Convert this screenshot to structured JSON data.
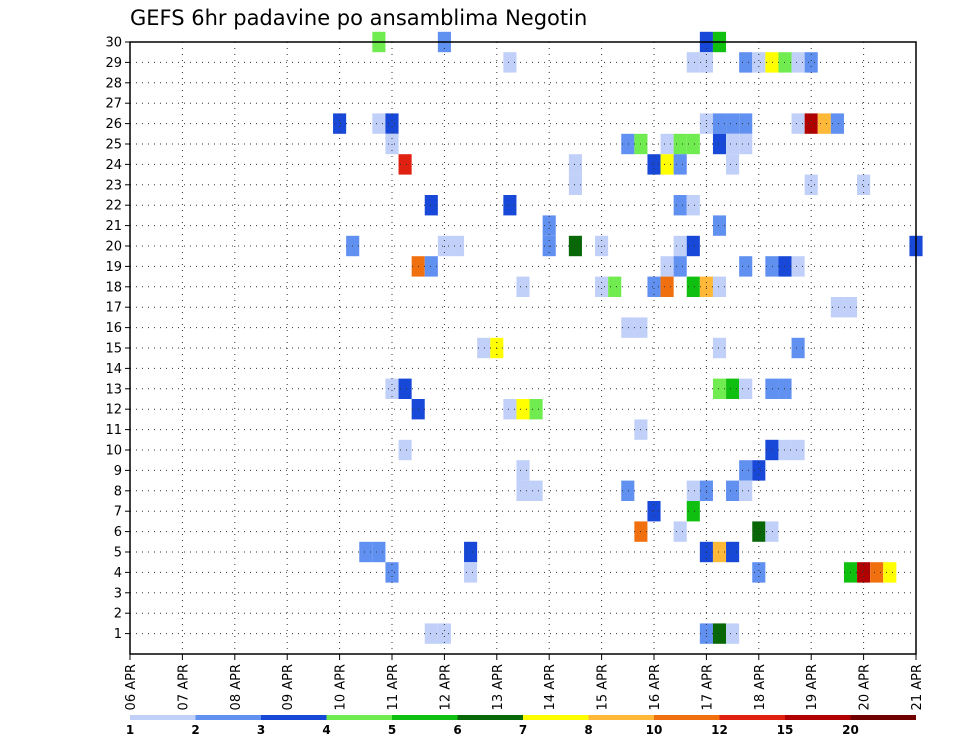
{
  "chart_data": {
    "type": "heatmap",
    "title": "GEFS 6hr padavine po ansamblima Negotin",
    "xlabel": "",
    "ylabel": "",
    "x_ticks": [
      "06 APR",
      "07 APR",
      "08 APR",
      "09 APR",
      "10 APR",
      "11 APR",
      "12 APR",
      "13 APR",
      "14 APR",
      "15 APR",
      "16 APR",
      "17 APR",
      "18 APR",
      "19 APR",
      "20 APR",
      "21 APR"
    ],
    "x_range": [
      0,
      60
    ],
    "x_step_hours": 6,
    "y_ticks": [
      1,
      2,
      3,
      4,
      5,
      6,
      7,
      8,
      9,
      10,
      11,
      12,
      13,
      14,
      15,
      16,
      17,
      18,
      19,
      20,
      21,
      22,
      23,
      24,
      25,
      26,
      27,
      28,
      29,
      30
    ],
    "y_range": [
      0,
      30
    ],
    "grid": true,
    "legend": {
      "placement": "bottom",
      "colors": [
        "#c0d0f8",
        "#6090f0",
        "#1848d8",
        "#70ec50",
        "#10c010",
        "#086808",
        "#ffff00",
        "#ffb838",
        "#f07010",
        "#e02010",
        "#b00000",
        "#700000"
      ],
      "labels": [
        "1",
        "2",
        "3",
        "4",
        "5",
        "6",
        "7",
        "8",
        "10",
        "12",
        "15",
        "20"
      ]
    },
    "cells": [
      {
        "t": 19,
        "m": 30,
        "c": 3
      },
      {
        "t": 24,
        "m": 30,
        "c": 1
      },
      {
        "t": 44,
        "m": 30,
        "c": 2
      },
      {
        "t": 45,
        "m": 30,
        "c": 4
      },
      {
        "t": 29,
        "m": 29,
        "c": 0
      },
      {
        "t": 43,
        "m": 29,
        "c": 0
      },
      {
        "t": 44,
        "m": 29,
        "c": 0
      },
      {
        "t": 47,
        "m": 29,
        "c": 1
      },
      {
        "t": 48,
        "m": 29,
        "c": 0
      },
      {
        "t": 49,
        "m": 29,
        "c": 6
      },
      {
        "t": 50,
        "m": 29,
        "c": 3
      },
      {
        "t": 51,
        "m": 29,
        "c": 0
      },
      {
        "t": 52,
        "m": 29,
        "c": 1
      },
      {
        "t": 16,
        "m": 26,
        "c": 2
      },
      {
        "t": 19,
        "m": 26,
        "c": 0
      },
      {
        "t": 20,
        "m": 26,
        "c": 2
      },
      {
        "t": 44,
        "m": 26,
        "c": 0
      },
      {
        "t": 45,
        "m": 26,
        "c": 1
      },
      {
        "t": 46,
        "m": 26,
        "c": 1
      },
      {
        "t": 47,
        "m": 26,
        "c": 1
      },
      {
        "t": 51,
        "m": 26,
        "c": 0
      },
      {
        "t": 52,
        "m": 26,
        "c": 10
      },
      {
        "t": 53,
        "m": 26,
        "c": 7
      },
      {
        "t": 54,
        "m": 26,
        "c": 1
      },
      {
        "t": 20,
        "m": 25,
        "c": 0
      },
      {
        "t": 38,
        "m": 25,
        "c": 1
      },
      {
        "t": 39,
        "m": 25,
        "c": 3
      },
      {
        "t": 41,
        "m": 25,
        "c": 0
      },
      {
        "t": 42,
        "m": 25,
        "c": 3
      },
      {
        "t": 43,
        "m": 25,
        "c": 3
      },
      {
        "t": 45,
        "m": 25,
        "c": 2
      },
      {
        "t": 46,
        "m": 25,
        "c": 0
      },
      {
        "t": 47,
        "m": 25,
        "c": 0
      },
      {
        "t": 21,
        "m": 24,
        "c": 9
      },
      {
        "t": 34,
        "m": 24,
        "c": 0
      },
      {
        "t": 40,
        "m": 24,
        "c": 2
      },
      {
        "t": 41,
        "m": 24,
        "c": 6
      },
      {
        "t": 42,
        "m": 24,
        "c": 1
      },
      {
        "t": 46,
        "m": 24,
        "c": 0
      },
      {
        "t": 34,
        "m": 23,
        "c": 0
      },
      {
        "t": 52,
        "m": 23,
        "c": 0
      },
      {
        "t": 56,
        "m": 23,
        "c": 0
      },
      {
        "t": 23,
        "m": 22,
        "c": 2
      },
      {
        "t": 29,
        "m": 22,
        "c": 2
      },
      {
        "t": 42,
        "m": 22,
        "c": 1
      },
      {
        "t": 43,
        "m": 22,
        "c": 0
      },
      {
        "t": 32,
        "m": 21,
        "c": 1
      },
      {
        "t": 45,
        "m": 21,
        "c": 1
      },
      {
        "t": 17,
        "m": 20,
        "c": 1
      },
      {
        "t": 24,
        "m": 20,
        "c": 0
      },
      {
        "t": 25,
        "m": 20,
        "c": 0
      },
      {
        "t": 32,
        "m": 20,
        "c": 1
      },
      {
        "t": 34,
        "m": 20,
        "c": 5
      },
      {
        "t": 36,
        "m": 20,
        "c": 0
      },
      {
        "t": 42,
        "m": 20,
        "c": 0
      },
      {
        "t": 43,
        "m": 20,
        "c": 2
      },
      {
        "t": 60,
        "m": 20,
        "c": 2
      },
      {
        "t": 22,
        "m": 19,
        "c": 8
      },
      {
        "t": 23,
        "m": 19,
        "c": 1
      },
      {
        "t": 41,
        "m": 19,
        "c": 0
      },
      {
        "t": 42,
        "m": 19,
        "c": 1
      },
      {
        "t": 47,
        "m": 19,
        "c": 1
      },
      {
        "t": 49,
        "m": 19,
        "c": 1
      },
      {
        "t": 50,
        "m": 19,
        "c": 2
      },
      {
        "t": 51,
        "m": 19,
        "c": 0
      },
      {
        "t": 30,
        "m": 18,
        "c": 0
      },
      {
        "t": 36,
        "m": 18,
        "c": 0
      },
      {
        "t": 37,
        "m": 18,
        "c": 3
      },
      {
        "t": 40,
        "m": 18,
        "c": 1
      },
      {
        "t": 41,
        "m": 18,
        "c": 8
      },
      {
        "t": 43,
        "m": 18,
        "c": 4
      },
      {
        "t": 44,
        "m": 18,
        "c": 7
      },
      {
        "t": 45,
        "m": 18,
        "c": 0
      },
      {
        "t": 54,
        "m": 17,
        "c": 0
      },
      {
        "t": 55,
        "m": 17,
        "c": 0
      },
      {
        "t": 38,
        "m": 16,
        "c": 0
      },
      {
        "t": 39,
        "m": 16,
        "c": 0
      },
      {
        "t": 27,
        "m": 15,
        "c": 0
      },
      {
        "t": 28,
        "m": 15,
        "c": 6
      },
      {
        "t": 45,
        "m": 15,
        "c": 0
      },
      {
        "t": 51,
        "m": 15,
        "c": 1
      },
      {
        "t": 20,
        "m": 13,
        "c": 0
      },
      {
        "t": 21,
        "m": 13,
        "c": 2
      },
      {
        "t": 45,
        "m": 13,
        "c": 3
      },
      {
        "t": 46,
        "m": 13,
        "c": 4
      },
      {
        "t": 47,
        "m": 13,
        "c": 0
      },
      {
        "t": 49,
        "m": 13,
        "c": 1
      },
      {
        "t": 50,
        "m": 13,
        "c": 1
      },
      {
        "t": 22,
        "m": 12,
        "c": 2
      },
      {
        "t": 29,
        "m": 12,
        "c": 0
      },
      {
        "t": 30,
        "m": 12,
        "c": 6
      },
      {
        "t": 31,
        "m": 12,
        "c": 3
      },
      {
        "t": 39,
        "m": 11,
        "c": 0
      },
      {
        "t": 21,
        "m": 10,
        "c": 0
      },
      {
        "t": 49,
        "m": 10,
        "c": 2
      },
      {
        "t": 50,
        "m": 10,
        "c": 0
      },
      {
        "t": 51,
        "m": 10,
        "c": 0
      },
      {
        "t": 30,
        "m": 9,
        "c": 0
      },
      {
        "t": 47,
        "m": 9,
        "c": 1
      },
      {
        "t": 48,
        "m": 9,
        "c": 2
      },
      {
        "t": 30,
        "m": 8,
        "c": 0
      },
      {
        "t": 31,
        "m": 8,
        "c": 0
      },
      {
        "t": 38,
        "m": 8,
        "c": 1
      },
      {
        "t": 43,
        "m": 8,
        "c": 0
      },
      {
        "t": 44,
        "m": 8,
        "c": 1
      },
      {
        "t": 46,
        "m": 8,
        "c": 1
      },
      {
        "t": 47,
        "m": 8,
        "c": 0
      },
      {
        "t": 40,
        "m": 7,
        "c": 2
      },
      {
        "t": 43,
        "m": 7,
        "c": 4
      },
      {
        "t": 39,
        "m": 6,
        "c": 8
      },
      {
        "t": 42,
        "m": 6,
        "c": 0
      },
      {
        "t": 48,
        "m": 6,
        "c": 5
      },
      {
        "t": 49,
        "m": 6,
        "c": 0
      },
      {
        "t": 18,
        "m": 5,
        "c": 1
      },
      {
        "t": 19,
        "m": 5,
        "c": 1
      },
      {
        "t": 26,
        "m": 5,
        "c": 2
      },
      {
        "t": 44,
        "m": 5,
        "c": 2
      },
      {
        "t": 45,
        "m": 5,
        "c": 7
      },
      {
        "t": 46,
        "m": 5,
        "c": 2
      },
      {
        "t": 20,
        "m": 4,
        "c": 1
      },
      {
        "t": 26,
        "m": 4,
        "c": 0
      },
      {
        "t": 48,
        "m": 4,
        "c": 1
      },
      {
        "t": 55,
        "m": 4,
        "c": 4
      },
      {
        "t": 56,
        "m": 4,
        "c": 10
      },
      {
        "t": 57,
        "m": 4,
        "c": 8
      },
      {
        "t": 58,
        "m": 4,
        "c": 6
      },
      {
        "t": 23,
        "m": 1,
        "c": 0
      },
      {
        "t": 24,
        "m": 1,
        "c": 0
      },
      {
        "t": 44,
        "m": 1,
        "c": 1
      },
      {
        "t": 45,
        "m": 1,
        "c": 5
      },
      {
        "t": 46,
        "m": 1,
        "c": 0
      }
    ]
  }
}
